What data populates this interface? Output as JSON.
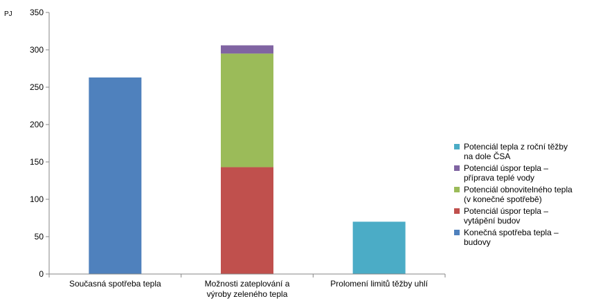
{
  "chart_data": {
    "type": "bar",
    "stacked": true,
    "unit_label": "PJ",
    "ylim": [
      0,
      350
    ],
    "y_ticks": [
      0,
      50,
      100,
      150,
      200,
      250,
      300,
      350
    ],
    "grid": false,
    "legend_position": "right",
    "categories": [
      [
        "Současná spotřeba tepla"
      ],
      [
        "Možnosti zateplování a",
        "výroby zeleného tepla"
      ],
      [
        "Prolomení limitů těžby uhlí"
      ]
    ],
    "series": [
      {
        "name": "Konečná spotřeba tepla – budovy",
        "name_lines": [
          "Konečná spotřeba tepla –",
          "budovy"
        ],
        "color": "#4F81BD",
        "values": [
          263,
          0,
          0
        ]
      },
      {
        "name": "Potenciál úspor tepla – vytápění budov",
        "name_lines": [
          "Potenciál úspor tepla –",
          "vytápění budov"
        ],
        "color": "#C0504D",
        "values": [
          0,
          143,
          0
        ]
      },
      {
        "name": "Potenciál obnovitelného tepla (v konečné spotřebě)",
        "name_lines": [
          "Potenciál obnovitelného tepla",
          "(v konečné spotřebě)"
        ],
        "color": "#9BBB59",
        "values": [
          0,
          152,
          0
        ]
      },
      {
        "name": "Potenciál úspor tepla – příprava teplé vody",
        "name_lines": [
          "Potenciál úspor tepla –",
          "příprava teplé vody"
        ],
        "color": "#8064A2",
        "values": [
          0,
          11,
          0
        ]
      },
      {
        "name": "Potenciál tepla z roční těžby na dole ČSA",
        "name_lines": [
          "Potenciál tepla z roční těžby",
          "na dole ČSA"
        ],
        "color": "#4BACC6",
        "values": [
          0,
          0,
          70
        ]
      }
    ]
  }
}
